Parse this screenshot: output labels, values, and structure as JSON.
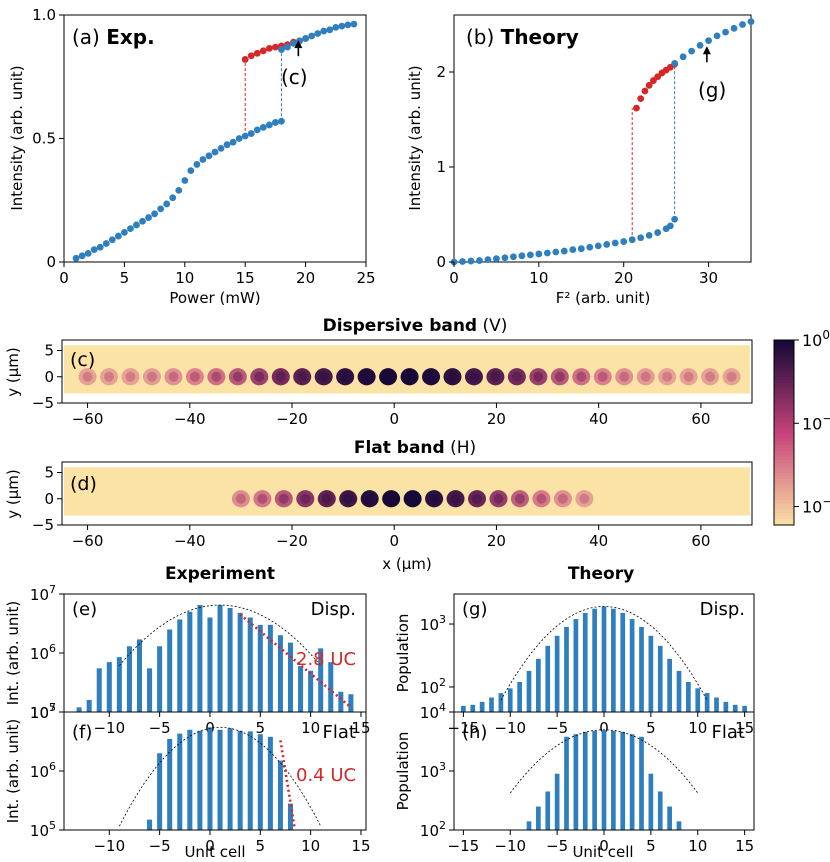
{
  "colors": {
    "blue": "#2f7fbf",
    "red": "#d62728",
    "guide": "#555555",
    "map_low": "#fbe3a6",
    "map_mid": "#c8447a",
    "map_high": "#160838"
  },
  "chart_data": [
    {
      "id": "a",
      "type": "scatter",
      "panel_label": "(a)",
      "title": "Exp.",
      "xlabel": "Power (mW)",
      "ylabel": "Intensity (arb. unit)",
      "xlim": [
        0,
        25
      ],
      "ylim": [
        0,
        1
      ],
      "xticks": [
        0,
        5,
        10,
        15,
        20,
        25
      ],
      "xtick_labels": [
        "0",
        "5",
        "10",
        "15",
        "20",
        "25"
      ],
      "yticks": [
        0,
        0.5,
        1
      ],
      "ytick_labels": [
        "0",
        "0.5",
        "1.0"
      ],
      "annotation": "(c)",
      "annotation_at": [
        19.4,
        0.89
      ],
      "series": [
        {
          "name": "lower branch",
          "color": "blue",
          "x": [
            1,
            1.5,
            2,
            2.5,
            3,
            3.5,
            4,
            4.5,
            5,
            5.5,
            6,
            6.5,
            7,
            7.5,
            8,
            8.5,
            9,
            9.5,
            10,
            10.5,
            11,
            11.5,
            12,
            12.5,
            13,
            13.5,
            14,
            14.5,
            15,
            15.5,
            16,
            16.5,
            17,
            17.5,
            18
          ],
          "y": [
            0.015,
            0.025,
            0.035,
            0.05,
            0.06,
            0.075,
            0.09,
            0.105,
            0.12,
            0.135,
            0.15,
            0.165,
            0.18,
            0.195,
            0.215,
            0.235,
            0.26,
            0.29,
            0.33,
            0.37,
            0.395,
            0.415,
            0.43,
            0.445,
            0.46,
            0.475,
            0.485,
            0.5,
            0.51,
            0.52,
            0.535,
            0.545,
            0.555,
            0.565,
            0.57
          ]
        },
        {
          "name": "upper branch (down sweep)",
          "color": "red",
          "x": [
            15,
            15.5,
            16,
            16.5,
            17,
            17.5,
            18,
            18.5,
            19,
            19.5,
            20
          ],
          "y": [
            0.82,
            0.835,
            0.845,
            0.855,
            0.865,
            0.87,
            0.875,
            0.88,
            0.89,
            0.895,
            0.905
          ]
        },
        {
          "name": "upper branch (up sweep)",
          "color": "blue",
          "x": [
            18,
            18.5,
            19,
            19.5,
            20,
            20.5,
            21,
            21.5,
            22,
            22.5,
            23,
            23.5,
            24
          ],
          "y": [
            0.86,
            0.87,
            0.885,
            0.895,
            0.905,
            0.915,
            0.925,
            0.935,
            0.94,
            0.95,
            0.955,
            0.96,
            0.963
          ]
        }
      ],
      "jumps": [
        {
          "x": 15,
          "y0": 0.51,
          "y1": 0.82,
          "color": "red"
        },
        {
          "x": 18,
          "y0": 0.57,
          "y1": 0.86,
          "color": "blue"
        }
      ]
    },
    {
      "id": "b",
      "type": "scatter",
      "panel_label": "(b)",
      "title": "Theory",
      "xlabel": "F² (arb. unit)",
      "ylabel": "Intensity (arb. unit)",
      "xlim": [
        0,
        35
      ],
      "ylim": [
        0,
        2.6
      ],
      "xticks": [
        0,
        10,
        20,
        30
      ],
      "xtick_labels": [
        "0",
        "10",
        "20",
        "30"
      ],
      "yticks": [
        0,
        1,
        2
      ],
      "ytick_labels": [
        "0",
        "1",
        "2"
      ],
      "annotation": "(g)",
      "annotation_at": [
        29.8,
        2.25
      ],
      "series": [
        {
          "name": "lower branch",
          "color": "blue",
          "x": [
            0,
            1,
            2,
            3,
            4,
            5,
            6,
            7,
            8,
            9,
            10,
            11,
            12,
            13,
            14,
            15,
            16,
            17,
            18,
            19,
            20,
            21,
            22,
            23,
            24,
            25,
            25.5,
            26
          ],
          "y": [
            0.0,
            0.005,
            0.01,
            0.015,
            0.025,
            0.035,
            0.045,
            0.055,
            0.065,
            0.075,
            0.085,
            0.095,
            0.105,
            0.115,
            0.13,
            0.14,
            0.155,
            0.17,
            0.185,
            0.2,
            0.215,
            0.235,
            0.255,
            0.28,
            0.31,
            0.35,
            0.38,
            0.45
          ]
        },
        {
          "name": "upper branch (down sweep)",
          "color": "red",
          "x": [
            21.5,
            22,
            22.5,
            23,
            23.5,
            24,
            24.5,
            25,
            25.5,
            26
          ],
          "y": [
            1.62,
            1.72,
            1.8,
            1.86,
            1.91,
            1.95,
            1.99,
            2.02,
            2.05,
            2.08
          ]
        },
        {
          "name": "upper branch (up sweep)",
          "color": "blue",
          "x": [
            26,
            27,
            28,
            29,
            30,
            31,
            32,
            33,
            34,
            35
          ],
          "y": [
            2.09,
            2.16,
            2.22,
            2.28,
            2.33,
            2.38,
            2.42,
            2.46,
            2.5,
            2.53
          ]
        }
      ],
      "jumps": [
        {
          "x": 21,
          "y0": 0.23,
          "y1": 1.62,
          "color": "red"
        },
        {
          "x": 26,
          "y0": 0.45,
          "y1": 2.09,
          "color": "blue"
        }
      ]
    },
    {
      "id": "c",
      "type": "heatmap",
      "panel_label": "(c)",
      "title": "Dispersive band",
      "title_suffix": "(V)",
      "ylabel": "y (μm)",
      "xlim": [
        -65,
        70
      ],
      "ylim": [
        -5,
        7
      ],
      "xticks": [
        -60,
        -40,
        -20,
        0,
        20,
        40,
        60
      ],
      "xtick_labels": [
        "−60",
        "−40",
        "−20",
        "0",
        "20",
        "40",
        "60"
      ],
      "yticks": [
        5,
        0,
        -5
      ],
      "ytick_labels": [
        "5",
        "0",
        "−5"
      ],
      "spot_x_range": [
        -60,
        68
      ],
      "spot_spacing": 4.2,
      "envelope_center": 1,
      "envelope_sigma": 22,
      "floor_intensity": 0.07
    },
    {
      "id": "d",
      "type": "heatmap",
      "panel_label": "(d)",
      "title": "Flat band",
      "title_suffix": "(H)",
      "ylabel": "y (μm)",
      "xlabel": "x (μm)",
      "xlim": [
        -65,
        70
      ],
      "ylim": [
        -5,
        7
      ],
      "xticks": [
        -60,
        -40,
        -20,
        0,
        20,
        40,
        60
      ],
      "xtick_labels": [
        "−60",
        "−40",
        "−20",
        "0",
        "20",
        "40",
        "60"
      ],
      "yticks": [
        5,
        0,
        -5
      ],
      "ytick_labels": [
        "5",
        "0",
        "−5"
      ],
      "spot_x_range": [
        -30,
        36
      ],
      "spot_spacing": 4.2,
      "envelope_center": 1,
      "envelope_sigma": 16,
      "floor_intensity": 0.0
    },
    {
      "type": "colorbar",
      "scale": "log",
      "range": [
        0.006,
        1
      ],
      "tick_labels": [
        {
          "base": "10",
          "exp": "0",
          "value": 1
        },
        {
          "base": "10",
          "exp": "−1",
          "value": 0.1
        },
        {
          "base": "10",
          "exp": "−2",
          "value": 0.01
        }
      ]
    },
    {
      "id": "e",
      "type": "bar",
      "section_title": "Experiment",
      "panel_label": "(e)",
      "legend_text": "Disp.",
      "yscale": "log",
      "ylabel": "Int. (arb. unit)",
      "xlim": [
        -14.5,
        15.5
      ],
      "ylim": [
        100000,
        10000000
      ],
      "xticks": [
        -10,
        -5,
        0,
        5,
        10,
        15
      ],
      "xtick_labels": [
        "−10",
        "−5",
        "0",
        "5",
        "10",
        "15"
      ],
      "yticks": [
        100000,
        1000000,
        10000000
      ],
      "ytick_labels": [
        {
          "base": "10",
          "exp": "5"
        },
        {
          "base": "10",
          "exp": "6"
        },
        {
          "base": "10",
          "exp": "7"
        }
      ],
      "x": [
        -13,
        -12,
        -11,
        -10,
        -9,
        -8,
        -7,
        -6,
        -5,
        -4,
        -3,
        -2,
        -1,
        0,
        1,
        2,
        3,
        4,
        5,
        6,
        7,
        8,
        9,
        10,
        11,
        12,
        13,
        14
      ],
      "values": [
        120000,
        160000,
        550000,
        700000,
        850000,
        1300000,
        1700000,
        550000,
        1300000,
        2500000,
        3700000,
        5000000,
        6500000,
        4000000,
        6500000,
        5800000,
        4800000,
        4000000,
        3000000,
        3000000,
        2000000,
        1500000,
        600000,
        500000,
        1200000,
        700000,
        220000,
        200000
      ],
      "fit": {
        "center": 1,
        "peak": 6500000,
        "sigma": 4.6,
        "x_range": [
          -9,
          11
        ]
      },
      "decay_line": {
        "x": [
          3,
          14
        ],
        "y": [
          4500000,
          120000
        ],
        "label": "2.8 UC",
        "label_color": "red"
      }
    },
    {
      "id": "g",
      "type": "bar",
      "section_title": "Theory",
      "panel_label": "(g)",
      "legend_text": "Disp.",
      "yscale": "log",
      "ylabel": "Population",
      "xlim": [
        -16,
        16
      ],
      "ylim": [
        40,
        3000
      ],
      "xticks": [
        -15,
        -10,
        -5,
        0,
        5,
        10,
        15
      ],
      "xtick_labels": [
        "−15",
        "−10",
        "−5",
        "0",
        "5",
        "10",
        "15"
      ],
      "yticks": [
        100,
        1000
      ],
      "ytick_labels": [
        {
          "base": "10",
          "exp": "2"
        },
        {
          "base": "10",
          "exp": "3"
        }
      ],
      "x": [
        -15,
        -14,
        -13,
        -12,
        -11,
        -10,
        -9,
        -8,
        -7,
        -6,
        -5,
        -4,
        -3,
        -2,
        -1,
        0,
        1,
        2,
        3,
        4,
        5,
        6,
        7,
        8,
        9,
        10,
        11,
        12,
        13,
        14,
        15
      ],
      "values": [
        50,
        52,
        58,
        68,
        80,
        95,
        120,
        180,
        280,
        450,
        650,
        900,
        1200,
        1500,
        1750,
        1900,
        1750,
        1500,
        1200,
        900,
        650,
        450,
        280,
        180,
        120,
        95,
        80,
        68,
        58,
        52,
        50
      ],
      "fit": {
        "center": 0,
        "peak": 1900,
        "sigma": 4.2,
        "x_range": [
          -11,
          11
        ]
      }
    },
    {
      "id": "f",
      "type": "bar",
      "panel_label": "(f)",
      "legend_text": "Flat",
      "yscale": "log",
      "ylabel": "Int. (arb. unit)",
      "xlabel": "Unit cell",
      "xlim": [
        -14.5,
        15.5
      ],
      "ylim": [
        100000,
        10000000
      ],
      "xticks": [
        -10,
        -5,
        0,
        5,
        10,
        15
      ],
      "xtick_labels": [
        "−10",
        "−5",
        "0",
        "5",
        "10",
        "15"
      ],
      "yticks": [
        100000,
        1000000,
        10000000
      ],
      "ytick_labels": [
        {
          "base": "10",
          "exp": "5"
        },
        {
          "base": "10",
          "exp": "6"
        },
        {
          "base": "10",
          "exp": "7"
        }
      ],
      "x": [
        -6,
        -5,
        -4,
        -3,
        -2,
        -1,
        0,
        1,
        2,
        3,
        4,
        5,
        6,
        7,
        8
      ],
      "values": [
        150000,
        2000000,
        3500000,
        4300000,
        5000000,
        4800000,
        5500000,
        5000000,
        5300000,
        4800000,
        4700000,
        4200000,
        3800000,
        1500000,
        280000
      ],
      "fit": {
        "center": 1,
        "peak": 5500000,
        "sigma": 3.6,
        "x_range": [
          -9,
          11
        ]
      },
      "decay_line": {
        "x": [
          7,
          8.4
        ],
        "y": [
          3300000,
          110000
        ],
        "label": "0.4 UC",
        "label_color": "red"
      }
    },
    {
      "id": "h",
      "type": "bar",
      "panel_label": "(h)",
      "legend_text": "Flat",
      "yscale": "log",
      "ylabel": "Population",
      "xlabel": "Unit cell",
      "xlim": [
        -16,
        16
      ],
      "ylim": [
        100,
        10000
      ],
      "xticks": [
        -15,
        -10,
        -5,
        0,
        5,
        10,
        15
      ],
      "xtick_labels": [
        "−15",
        "−10",
        "−5",
        "0",
        "5",
        "10",
        "15"
      ],
      "yticks": [
        100,
        1000,
        10000
      ],
      "ytick_labels": [
        {
          "base": "10",
          "exp": "2"
        },
        {
          "base": "10",
          "exp": "3"
        },
        {
          "base": "10",
          "exp": "4"
        }
      ],
      "x": [
        -8,
        -7,
        -6,
        -5,
        -4,
        -3,
        -2,
        -1,
        0,
        1,
        2,
        3,
        4,
        5,
        6,
        7,
        8
      ],
      "values": [
        140,
        250,
        450,
        900,
        3800,
        4200,
        4600,
        4800,
        4900,
        4800,
        4600,
        4200,
        3800,
        900,
        450,
        250,
        140
      ],
      "fit": {
        "center": 0,
        "peak": 5000,
        "sigma": 4.5,
        "x_range": [
          -10,
          10
        ]
      }
    }
  ]
}
